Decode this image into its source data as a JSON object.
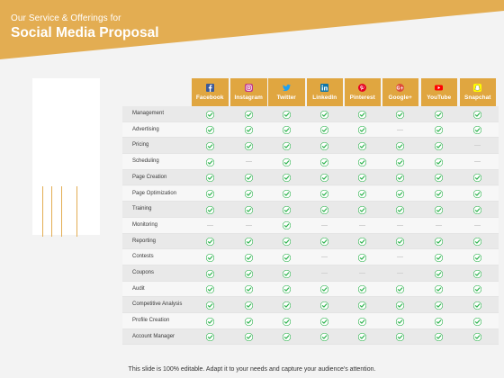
{
  "slide": {
    "title_small": "Our Service & Offerings for",
    "title_big": "Social Media Proposal",
    "footer": "This slide is 100% editable. Adapt it to your needs and capture your audience's attention."
  },
  "colors": {
    "banner": "#e3ad52",
    "header": "#e0a640",
    "check": "#2bb24c",
    "dash": "#d2d2d2"
  },
  "platforms": [
    {
      "label": "Facebook",
      "icon": "facebook-icon"
    },
    {
      "label": "Instagram",
      "icon": "instagram-icon"
    },
    {
      "label": "Twitter",
      "icon": "twitter-icon"
    },
    {
      "label": "LinkedIn",
      "icon": "linkedin-icon"
    },
    {
      "label": "Pinterest",
      "icon": "pinterest-icon"
    },
    {
      "label": "Google+",
      "icon": "google-plus-icon"
    },
    {
      "label": "YouTube",
      "icon": "youtube-icon"
    },
    {
      "label": "Snapchat",
      "icon": "snapchat-icon"
    }
  ],
  "services": [
    {
      "label": "Management",
      "support": [
        1,
        1,
        1,
        1,
        1,
        1,
        1,
        1
      ]
    },
    {
      "label": "Advertising",
      "support": [
        1,
        1,
        1,
        1,
        1,
        0,
        1,
        1
      ]
    },
    {
      "label": "Pricing",
      "support": [
        1,
        1,
        1,
        1,
        1,
        1,
        1,
        0
      ]
    },
    {
      "label": "Scheduling",
      "support": [
        1,
        0,
        1,
        1,
        1,
        1,
        1,
        0
      ]
    },
    {
      "label": "Page Creation",
      "support": [
        1,
        1,
        1,
        1,
        1,
        1,
        1,
        1
      ]
    },
    {
      "label": "Page Optimization",
      "support": [
        1,
        1,
        1,
        1,
        1,
        1,
        1,
        1
      ]
    },
    {
      "label": "Training",
      "support": [
        1,
        1,
        1,
        1,
        1,
        1,
        1,
        1
      ]
    },
    {
      "label": "Monitoring",
      "support": [
        0,
        0,
        1,
        0,
        0,
        0,
        0,
        0
      ]
    },
    {
      "label": "Reporting",
      "support": [
        1,
        1,
        1,
        1,
        1,
        1,
        1,
        1
      ]
    },
    {
      "label": "Contests",
      "support": [
        1,
        1,
        1,
        0,
        1,
        0,
        1,
        1
      ]
    },
    {
      "label": "Coupons",
      "support": [
        1,
        1,
        1,
        0,
        0,
        0,
        1,
        1
      ]
    },
    {
      "label": "Audit",
      "support": [
        1,
        1,
        1,
        1,
        1,
        1,
        1,
        1
      ]
    },
    {
      "label": "Competitive Analysis",
      "support": [
        1,
        1,
        1,
        1,
        1,
        1,
        1,
        1
      ]
    },
    {
      "label": "Profile Creation",
      "support": [
        1,
        1,
        1,
        1,
        1,
        1,
        1,
        1
      ]
    },
    {
      "label": "Account Manager",
      "support": [
        1,
        1,
        1,
        1,
        1,
        1,
        1,
        1
      ]
    }
  ]
}
